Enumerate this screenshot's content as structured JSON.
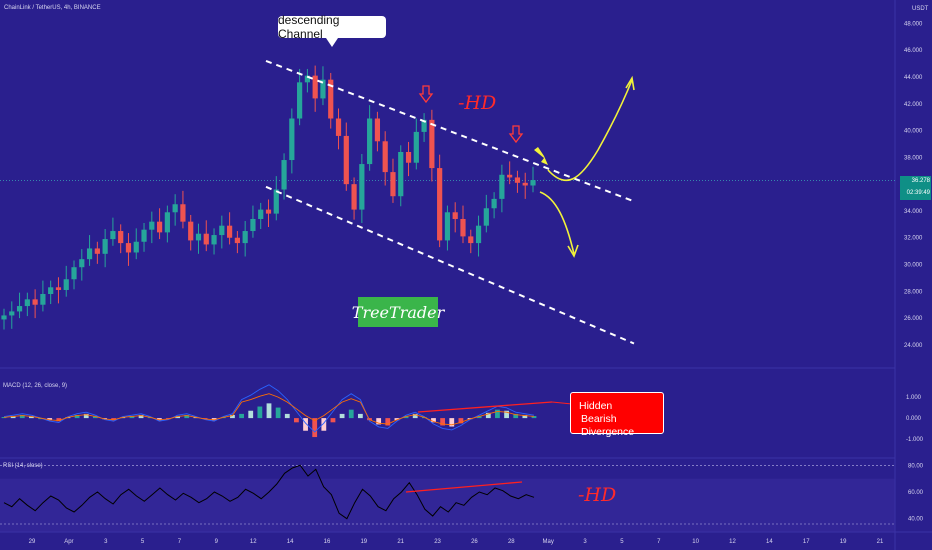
{
  "header": {
    "symbol_line": "ChainLink / TetherUS, 4h, BINANCE",
    "currency": "USDT"
  },
  "annotations": {
    "channel_label": "descending Channel",
    "hd_label": "-HD",
    "rsi_hd_label": "-HD",
    "brand": "TreeTrader",
    "divergence_line1": "Hidden",
    "divergence_line2": "Bearish Divergence"
  },
  "panels": {
    "macd_label": "MACD (12, 26, close, 9)",
    "rsi_label": "RSI (14, close)"
  },
  "colors": {
    "background": "#2a1f8e",
    "bull": "#26a69a",
    "bear": "#ef5350",
    "channel": "#ffffff",
    "projection": "#f2f23a",
    "divergence": "#ff2020"
  },
  "chart_data": [
    {
      "type": "candlestick",
      "title": "ChainLink / TetherUS, 4h, BINANCE",
      "y_unit": "USDT",
      "y_ticks": [
        "48.000",
        "46.000",
        "44.000",
        "42.000",
        "40.000",
        "38.000",
        "34.000",
        "32.000",
        "30.000",
        "28.000",
        "26.000",
        "24.000"
      ],
      "ylim": [
        22.5,
        49
      ],
      "x_ticks": [
        "29",
        "Apr",
        "3",
        "5",
        "7",
        "9",
        "12",
        "14",
        "16",
        "19",
        "21",
        "23",
        "26",
        "28",
        "May",
        "3",
        "5",
        "7",
        "10",
        "12",
        "14",
        "17",
        "19",
        "21"
      ],
      "last_price": "36.278",
      "countdown": "02:39:49",
      "closes": [
        26.2,
        26.5,
        26.9,
        27.4,
        27.0,
        27.8,
        28.3,
        28.1,
        28.9,
        29.8,
        30.4,
        31.2,
        30.8,
        31.9,
        32.5,
        31.6,
        30.9,
        31.7,
        32.6,
        33.2,
        32.4,
        33.9,
        34.5,
        33.2,
        31.8,
        32.3,
        31.5,
        32.2,
        32.9,
        32.0,
        31.6,
        32.5,
        33.4,
        34.1,
        33.8,
        35.6,
        37.8,
        40.9,
        43.6,
        44.1,
        42.4,
        43.8,
        40.9,
        39.6,
        36.0,
        34.1,
        37.5,
        40.9,
        39.2,
        36.9,
        35.1,
        38.4,
        37.6,
        39.9,
        40.8,
        37.2,
        31.8,
        33.9,
        33.4,
        32.1,
        31.6,
        32.9,
        34.2,
        34.9,
        36.7,
        36.5,
        36.1,
        35.9,
        36.3
      ],
      "levels": [
        "channel_upper_start",
        "channel_upper_end",
        "channel_lower_start",
        "channel_lower_end"
      ],
      "channel": {
        "upper": [
          [
            0,
            45.2
          ],
          [
            68,
            34.8
          ]
        ],
        "lower": [
          [
            0,
            35.8
          ],
          [
            68,
            24.2
          ]
        ]
      }
    },
    {
      "type": "bar",
      "title": "MACD (12, 26, close, 9)",
      "y_ticks": [
        "1.000",
        "0.000",
        "-1.000"
      ],
      "ylim": [
        -1.8,
        2.0
      ],
      "histogram": [
        0.05,
        0.1,
        0.15,
        0.1,
        0.0,
        -0.1,
        -0.15,
        0.05,
        0.15,
        0.2,
        0.1,
        -0.05,
        -0.1,
        0.05,
        0.1,
        0.15,
        0.05,
        -0.1,
        -0.05,
        0.1,
        0.15,
        0.05,
        -0.05,
        -0.1,
        0.05,
        0.15,
        0.2,
        0.35,
        0.55,
        0.7,
        0.5,
        0.2,
        -0.2,
        -0.6,
        -0.9,
        -0.6,
        -0.2,
        0.2,
        0.4,
        0.2,
        -0.1,
        -0.3,
        -0.35,
        -0.1,
        0.1,
        0.2,
        0.05,
        -0.2,
        -0.35,
        -0.4,
        -0.25,
        -0.05,
        0.1,
        0.25,
        0.4,
        0.35,
        0.2,
        0.15,
        0.1
      ]
    },
    {
      "type": "line",
      "title": "RSI (14, close)",
      "y_ticks": [
        "80.00",
        "60.00",
        "40.00"
      ],
      "ylim": [
        33,
        84
      ],
      "values": [
        52,
        49,
        55,
        50,
        46,
        52,
        57,
        54,
        48,
        45,
        50,
        56,
        60,
        55,
        51,
        58,
        62,
        57,
        53,
        58,
        63,
        58,
        54,
        59,
        56,
        52,
        55,
        60,
        57,
        53,
        56,
        62,
        59,
        55,
        60,
        66,
        74,
        78,
        80,
        72,
        77,
        64,
        58,
        44,
        40,
        52,
        62,
        57,
        49,
        46,
        55,
        60,
        67,
        58,
        47,
        42,
        49,
        45,
        52,
        50,
        56,
        60,
        58,
        63,
        61,
        57,
        55,
        58,
        56
      ]
    }
  ]
}
